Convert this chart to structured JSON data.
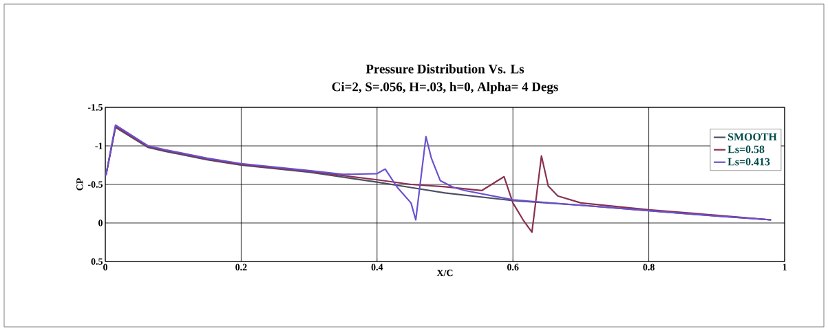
{
  "chart_data": {
    "type": "line",
    "title": "Pressure Distribution Vs. Ls",
    "subtitle": "Ci=2, S=.056, H=.03, h=0, Alpha= 4 Degs",
    "xlabel": "X/C",
    "ylabel": "CP",
    "xlim": [
      0,
      1
    ],
    "ylim": [
      0.5,
      -1.5
    ],
    "xticks": [
      0,
      0.2,
      0.4,
      0.6,
      0.8,
      1
    ],
    "yticks": [
      -1.5,
      -1,
      -0.5,
      0,
      0.5
    ],
    "grid": true,
    "legend": "right",
    "series": [
      {
        "name": "SMOOTH",
        "color": "#4a4f66",
        "x": [
          0.001,
          0.015,
          0.063,
          0.088,
          0.15,
          0.2,
          0.3,
          0.4,
          0.45,
          0.5,
          0.6,
          0.7,
          0.8,
          0.9,
          0.98
        ],
        "values": [
          -0.62,
          -1.24,
          -0.98,
          -0.93,
          -0.82,
          -0.75,
          -0.66,
          -0.53,
          -0.46,
          -0.39,
          -0.29,
          -0.23,
          -0.16,
          -0.09,
          -0.04
        ]
      },
      {
        "name": "Ls=0.58",
        "color": "#8a3050",
        "x": [
          0.001,
          0.015,
          0.063,
          0.088,
          0.15,
          0.2,
          0.3,
          0.4,
          0.45,
          0.5,
          0.554,
          0.587,
          0.6,
          0.615,
          0.628,
          0.642,
          0.652,
          0.666,
          0.7,
          0.8,
          0.9,
          0.98
        ],
        "values": [
          -0.62,
          -1.25,
          -0.99,
          -0.94,
          -0.83,
          -0.76,
          -0.67,
          -0.56,
          -0.5,
          -0.47,
          -0.42,
          -0.6,
          -0.26,
          -0.04,
          0.12,
          -0.87,
          -0.48,
          -0.35,
          -0.26,
          -0.17,
          -0.1,
          -0.04
        ]
      },
      {
        "name": "Ls=0.413",
        "color": "#6a50d0",
        "x": [
          0.001,
          0.015,
          0.063,
          0.088,
          0.15,
          0.2,
          0.3,
          0.35,
          0.4,
          0.412,
          0.43,
          0.45,
          0.457,
          0.472,
          0.48,
          0.493,
          0.513,
          0.53,
          0.6,
          0.7,
          0.8,
          0.9,
          0.98
        ],
        "values": [
          -0.62,
          -1.27,
          -1.0,
          -0.95,
          -0.84,
          -0.77,
          -0.68,
          -0.63,
          -0.64,
          -0.7,
          -0.46,
          -0.26,
          -0.04,
          -1.12,
          -0.84,
          -0.55,
          -0.46,
          -0.42,
          -0.3,
          -0.23,
          -0.16,
          -0.09,
          -0.04
        ]
      }
    ]
  }
}
